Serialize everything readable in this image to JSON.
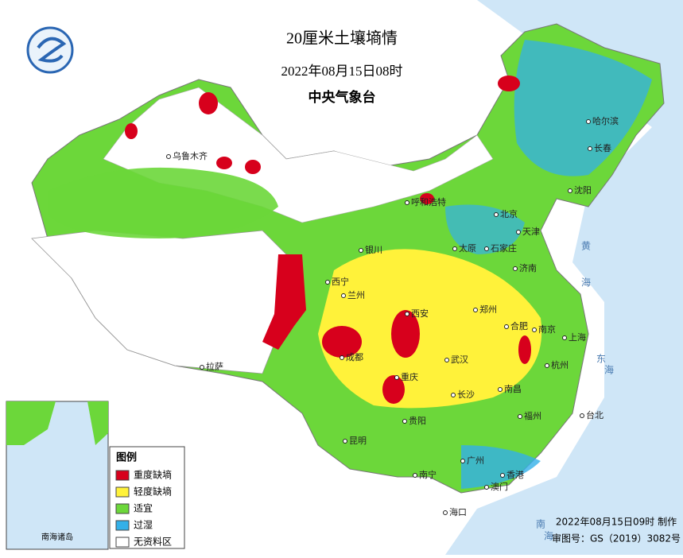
{
  "header": {
    "title": "20厘米土壤墒情",
    "time": "2022年08月15日08时",
    "agency": "中央气象台"
  },
  "legend": {
    "title": "图例",
    "items": [
      {
        "label": "重度缺墒",
        "color": "#d7001c"
      },
      {
        "label": "轻度缺墒",
        "color": "#fff23a"
      },
      {
        "label": "适宜",
        "color": "#6cd73a"
      },
      {
        "label": "过湿",
        "color": "#33b0e8"
      },
      {
        "label": "无资料区",
        "color": "#ffffff"
      }
    ]
  },
  "cities": [
    "哈尔滨",
    "长春",
    "沈阳",
    "北京",
    "天津",
    "石家庄",
    "太原",
    "济南",
    "郑州",
    "西安",
    "兰州",
    "西宁",
    "银川",
    "呼和浩特",
    "乌鲁木齐",
    "拉萨",
    "成都",
    "重庆",
    "贵阳",
    "昆明",
    "南宁",
    "广州",
    "长沙",
    "武汉",
    "合肥",
    "南京",
    "上海",
    "杭州",
    "南昌",
    "福州",
    "台北",
    "香港",
    "澳门",
    "海口"
  ],
  "seas": [
    "黄海",
    "东海",
    "南海"
  ],
  "inset": {
    "label": "南海诸岛"
  },
  "footer": {
    "made": "2022年08月15日09时 制作",
    "approval": "审图号：GS（2019）3082号"
  }
}
